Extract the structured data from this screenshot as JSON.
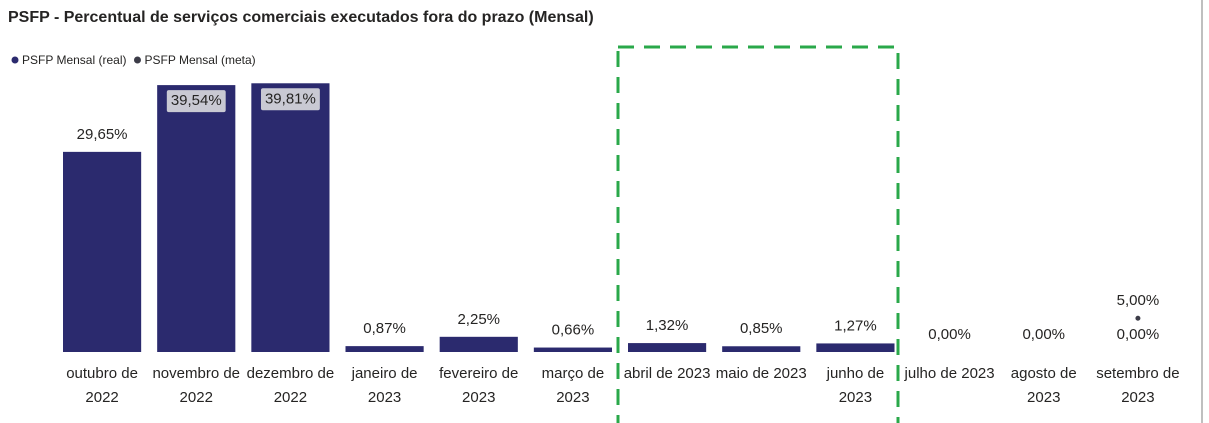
{
  "chart_data": {
    "type": "bar",
    "title": "PSFP - Percentual de serviços comerciais executados fora do prazo (Mensal)",
    "categories": [
      "outubro de 2022",
      "novembro de 2022",
      "dezembro de 2022",
      "janeiro de 2023",
      "fevereiro de 2023",
      "março de 2023",
      "abril de 2023",
      "maio de 2023",
      "junho de 2023",
      "julho de 2023",
      "agosto de 2023",
      "setembro de 2023"
    ],
    "series": [
      {
        "name": "PSFP Mensal (real)",
        "color": "#2b2a6e",
        "kind": "bar",
        "values": [
          29.65,
          39.54,
          39.81,
          0.87,
          2.25,
          0.66,
          1.32,
          0.85,
          1.27,
          0,
          0,
          0
        ],
        "value_labels": [
          "29,65%",
          "39,54%",
          "39,81%",
          "0,87%",
          "2,25%",
          "0,66%",
          "1,32%",
          "0,85%",
          "1,27%",
          "0,00%",
          "0,00%",
          "0,00%"
        ]
      },
      {
        "name": "PSFP Mensal (meta)",
        "color": "#3c3c48",
        "kind": "point",
        "values": [
          null,
          null,
          null,
          null,
          null,
          null,
          null,
          null,
          null,
          null,
          null,
          5
        ],
        "value_labels": [
          null,
          null,
          null,
          null,
          null,
          null,
          null,
          null,
          null,
          null,
          null,
          "5,00%"
        ]
      }
    ],
    "ylim": [
      0,
      40
    ],
    "legend": "top-left"
  }
}
